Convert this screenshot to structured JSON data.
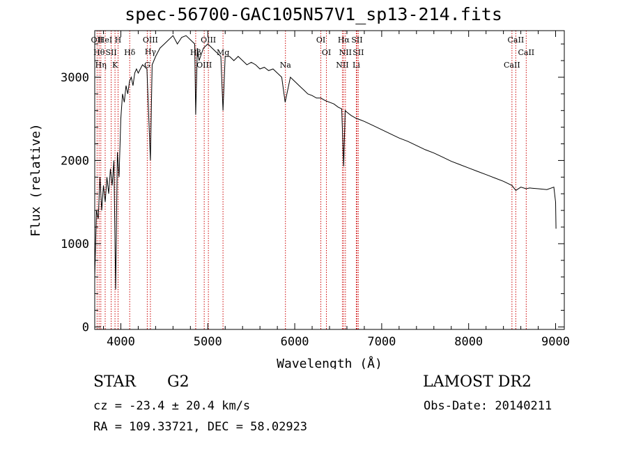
{
  "chart_data": {
    "type": "line",
    "title": "spec-56700-GAC105N57V1_sp13-214.fits",
    "xlabel": "Wavelength (Å)",
    "ylabel": "Flux (relative)",
    "xlim": [
      3700,
      9100
    ],
    "ylim": [
      -30,
      3560
    ],
    "xticks": [
      4000,
      5000,
      6000,
      7000,
      8000,
      9000
    ],
    "yticks": [
      0,
      1000,
      2000,
      3000
    ],
    "series_color": "#000000",
    "line_color": "#cc0000",
    "series": [
      {
        "x": [
          3700,
          3720,
          3740,
          3760,
          3780,
          3800,
          3820,
          3840,
          3860,
          3880,
          3900,
          3920,
          3940,
          3960,
          3980,
          4000,
          4020,
          4040,
          4060,
          4080,
          4100,
          4120,
          4140,
          4160,
          4180,
          4200,
          4250,
          4300,
          4340,
          4360,
          4400,
          4450,
          4500,
          4550,
          4600,
          4650,
          4700,
          4750,
          4800,
          4850,
          4861,
          4880,
          4900,
          4950,
          5000,
          5050,
          5100,
          5150,
          5175,
          5200,
          5250,
          5300,
          5350,
          5400,
          5450,
          5500,
          5550,
          5600,
          5650,
          5700,
          5750,
          5800,
          5850,
          5890,
          5950,
          6000,
          6050,
          6100,
          6150,
          6200,
          6250,
          6300,
          6350,
          6400,
          6450,
          6500,
          6540,
          6563,
          6580,
          6600,
          6650,
          6700,
          6750,
          6800,
          6900,
          7000,
          7100,
          7200,
          7300,
          7400,
          7500,
          7600,
          7700,
          7800,
          7900,
          8000,
          8100,
          8200,
          8300,
          8400,
          8498,
          8542,
          8600,
          8662,
          8700,
          8800,
          8900,
          8980,
          9000,
          9005
        ],
        "y": [
          600,
          1400,
          1300,
          1800,
          1400,
          1700,
          1500,
          1800,
          1600,
          1900,
          1700,
          2000,
          450,
          2100,
          1800,
          2500,
          2800,
          2700,
          2900,
          2800,
          2950,
          3000,
          2900,
          3050,
          3100,
          3050,
          3150,
          3100,
          2000,
          3150,
          3250,
          3350,
          3400,
          3450,
          3500,
          3400,
          3480,
          3500,
          3450,
          3400,
          2550,
          3350,
          3200,
          3350,
          3400,
          3350,
          3300,
          3250,
          2600,
          3250,
          3250,
          3200,
          3250,
          3200,
          3150,
          3180,
          3150,
          3100,
          3120,
          3080,
          3100,
          3050,
          3000,
          2700,
          3000,
          2950,
          2900,
          2850,
          2800,
          2780,
          2750,
          2750,
          2720,
          2700,
          2680,
          2640,
          2620,
          1930,
          2600,
          2580,
          2540,
          2510,
          2490,
          2470,
          2420,
          2370,
          2320,
          2270,
          2230,
          2180,
          2130,
          2090,
          2040,
          1990,
          1950,
          1910,
          1870,
          1830,
          1790,
          1750,
          1700,
          1640,
          1680,
          1660,
          1670,
          1660,
          1650,
          1680,
          1500,
          1180
        ]
      }
    ],
    "lines": [
      {
        "x": 3727,
        "labels": [
          "OII"
        ]
      },
      {
        "x": 3750,
        "labels": [
          "Hθ"
        ]
      },
      {
        "x": 3770,
        "labels": [
          "Hη"
        ]
      },
      {
        "x": 3820,
        "labels": [
          "HeI"
        ]
      },
      {
        "x": 3889,
        "labels": [
          "SII"
        ]
      },
      {
        "x": 3933,
        "labels": [
          "K"
        ]
      },
      {
        "x": 3968,
        "labels": [
          "H"
        ]
      },
      {
        "x": 4102,
        "labels": [
          "Hδ"
        ]
      },
      {
        "x": 4304,
        "labels": [
          "G"
        ]
      },
      {
        "x": 4340,
        "labels": [
          "OIII",
          "Hγ"
        ]
      },
      {
        "x": 4861,
        "labels": [
          "Hβ"
        ]
      },
      {
        "x": 4959,
        "labels": [
          "OIII"
        ]
      },
      {
        "x": 5007,
        "labels": [
          "OIII"
        ]
      },
      {
        "x": 5175,
        "labels": [
          "Mg"
        ]
      },
      {
        "x": 5893,
        "labels": [
          "Na"
        ]
      },
      {
        "x": 6300,
        "labels": [
          "OI"
        ]
      },
      {
        "x": 6364,
        "labels": [
          "OI"
        ]
      },
      {
        "x": 6548,
        "labels": [
          "NII"
        ]
      },
      {
        "x": 6563,
        "labels": [
          "Hα"
        ]
      },
      {
        "x": 6583,
        "labels": [
          "NII"
        ]
      },
      {
        "x": 6708,
        "labels": [
          "Li"
        ]
      },
      {
        "x": 6716,
        "labels": [
          "SII"
        ]
      },
      {
        "x": 6731,
        "labels": [
          "SII"
        ]
      },
      {
        "x": 8498,
        "labels": [
          "CaII"
        ]
      },
      {
        "x": 8542,
        "labels": [
          "CaII"
        ]
      },
      {
        "x": 8662,
        "labels": [
          "CaII"
        ]
      }
    ]
  },
  "info": {
    "class_label": "STAR",
    "subclass": "G2",
    "survey": "LAMOST DR2",
    "cz": "cz = -23.4 ± 20.4 km/s",
    "obs_date": "Obs-Date: 20140211",
    "radec": "RA = 109.33721, DEC =  58.02923"
  }
}
